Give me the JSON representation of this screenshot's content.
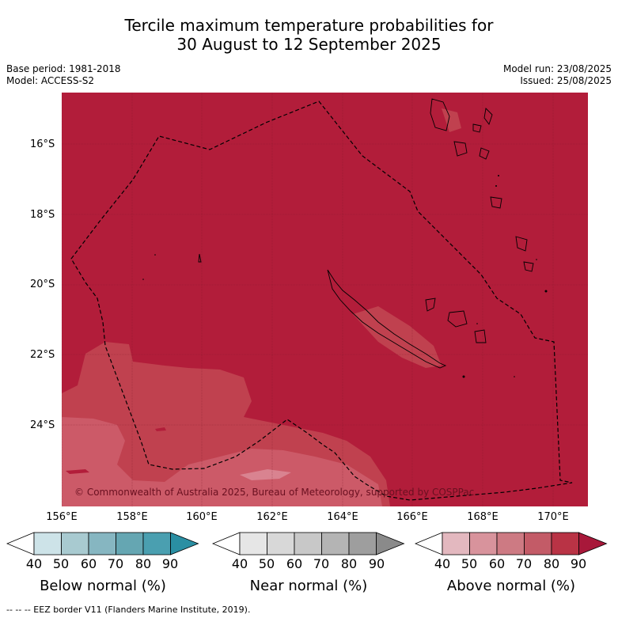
{
  "title": {
    "line1": "Tercile maximum temperature probabilities for",
    "line2": "30 August to 12 September 2025"
  },
  "meta_left": {
    "base_period": "Base period: 1981-2018",
    "model": "Model: ACCESS-S2"
  },
  "meta_right": {
    "model_run": "Model run: 23/08/2025",
    "issued": "Issued: 25/08/2025"
  },
  "lat_labels": [
    "16°S",
    "18°S",
    "20°S",
    "22°S",
    "24°S"
  ],
  "lon_labels": [
    "156°E",
    "158°E",
    "160°E",
    "162°E",
    "164°E",
    "166°E",
    "168°E",
    "170°E"
  ],
  "copyright": "© Commonwealth of Australia 2025, Bureau of Meteorology, supported by COSPPac",
  "colorbars": [
    {
      "title": "Below normal (%)",
      "colors": [
        "#ffffff",
        "#cde3e8",
        "#a8cad0",
        "#86b6c1",
        "#65a6b2",
        "#4a9fb0",
        "#2a8fa3"
      ],
      "ticks": [
        "40",
        "50",
        "60",
        "70",
        "80",
        "90"
      ]
    },
    {
      "title": "Near normal (%)",
      "colors": [
        "#ffffff",
        "#e6e6e6",
        "#d8d8d8",
        "#c8c8c8",
        "#b4b4b4",
        "#9e9e9e",
        "#8a8a8a"
      ],
      "ticks": [
        "40",
        "50",
        "60",
        "70",
        "80",
        "90"
      ]
    },
    {
      "title": "Above normal (%)",
      "colors": [
        "#ffffff",
        "#e3b8bf",
        "#d8939c",
        "#cd7a83",
        "#c35b67",
        "#b93345",
        "#a8183a"
      ],
      "ticks": [
        "40",
        "50",
        "60",
        "70",
        "80",
        "90"
      ]
    }
  ],
  "map_colors": {
    "above_80_90": "#b21d3a",
    "above_70_80": "#c0414f",
    "above_60_70": "#cc5a68",
    "above_50_60": "#d98390"
  },
  "footer": "--  --  -- EEZ border V11 (Flanders Marine Institute, 2019)."
}
